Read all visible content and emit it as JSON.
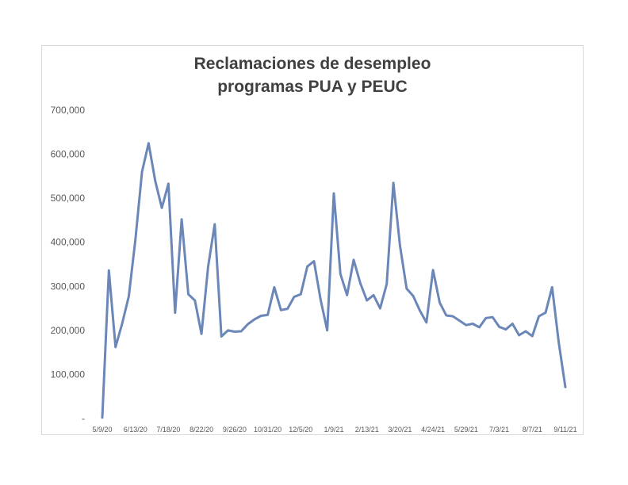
{
  "chart_data": {
    "type": "line",
    "title": "Reclamaciones de desempleo programas PUA y PEUC",
    "title_lines": [
      "Reclamaciones de desempleo",
      "programas PUA y PEUC"
    ],
    "xlabel": "",
    "ylabel": "",
    "ylim": [
      0,
      700000
    ],
    "y_ticks": [
      0,
      100000,
      200000,
      300000,
      400000,
      500000,
      600000,
      700000
    ],
    "y_tick_labels": [
      "-",
      "100,000",
      "200,000",
      "300,000",
      "400,000",
      "500,000",
      "600,000",
      "700,000"
    ],
    "x_tick_labels": [
      "5/9/20",
      "6/13/20",
      "7/18/20",
      "8/22/20",
      "9/26/20",
      "10/31/20",
      "12/5/20",
      "1/9/21",
      "2/13/21",
      "3/20/21",
      "4/24/21",
      "5/29/21",
      "7/3/21",
      "8/7/21",
      "9/11/21"
    ],
    "x_tick_every": 5,
    "grid": false,
    "line_color": "#6b87b8",
    "series": [
      {
        "values": [
          2000,
          336000,
          162000,
          215000,
          277000,
          405000,
          560000,
          625000,
          540000,
          478000,
          533000,
          240000,
          452000,
          282000,
          268000,
          192000,
          345000,
          441000,
          186000,
          200000,
          197000,
          198000,
          214000,
          225000,
          233000,
          235000,
          298000,
          246000,
          249000,
          276000,
          282000,
          345000,
          357000,
          270000,
          200000,
          511000,
          328000,
          280000,
          360000,
          307000,
          268000,
          280000,
          250000,
          305000,
          535000,
          393000,
          295000,
          278000,
          245000,
          218000,
          337000,
          263000,
          234000,
          232000,
          222000,
          212000,
          215000,
          207000,
          228000,
          230000,
          208000,
          202000,
          215000,
          189000,
          198000,
          187000,
          232000,
          240000,
          298000,
          172000,
          71000
        ]
      }
    ]
  }
}
